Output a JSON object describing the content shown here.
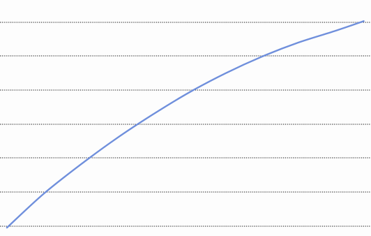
{
  "chart_data": {
    "type": "line",
    "title": "",
    "xlabel": "",
    "ylabel": "",
    "grid": true,
    "grid_style": "dotted",
    "legend": "none",
    "xlim": [
      0,
      10
    ],
    "ylim": [
      0,
      6.5
    ],
    "series": [
      {
        "color": "#6f8fdc",
        "x": [
          0,
          1,
          2,
          3,
          4,
          5,
          6,
          7,
          8,
          9,
          9.8
        ],
        "y": [
          0,
          1.05,
          1.95,
          2.78,
          3.53,
          4.22,
          4.82,
          5.34,
          5.78,
          6.14,
          6.45
        ]
      }
    ]
  },
  "colors": {
    "line": "#6f8fdc",
    "grid": "#3a3a3a"
  }
}
